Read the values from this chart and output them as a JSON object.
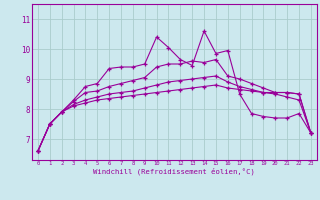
{
  "xlabel": "Windchill (Refroidissement éolien,°C)",
  "bg_color": "#cce8ee",
  "line_color": "#990099",
  "grid_color": "#aacccc",
  "x_ticks": [
    0,
    1,
    2,
    3,
    4,
    5,
    6,
    7,
    8,
    9,
    10,
    11,
    12,
    13,
    14,
    15,
    16,
    17,
    18,
    19,
    20,
    21,
    22,
    23
  ],
  "y_ticks": [
    7,
    8,
    9,
    10,
    11
  ],
  "xlim": [
    -0.5,
    23.5
  ],
  "ylim": [
    6.3,
    11.5
  ],
  "lines": [
    [
      6.6,
      7.5,
      7.9,
      8.1,
      8.2,
      8.3,
      8.35,
      8.4,
      8.45,
      8.5,
      8.55,
      8.6,
      8.65,
      8.7,
      8.75,
      8.8,
      8.7,
      8.65,
      8.6,
      8.55,
      8.5,
      8.4,
      8.3,
      7.2
    ],
    [
      6.6,
      7.5,
      7.9,
      8.15,
      8.3,
      8.4,
      8.5,
      8.55,
      8.6,
      8.7,
      8.8,
      8.9,
      8.95,
      9.0,
      9.05,
      9.1,
      8.9,
      8.75,
      8.65,
      8.55,
      8.55,
      8.55,
      8.5,
      7.2
    ],
    [
      6.6,
      7.5,
      7.9,
      8.25,
      8.55,
      8.6,
      8.75,
      8.85,
      8.95,
      9.05,
      9.4,
      9.5,
      9.5,
      9.6,
      9.55,
      9.65,
      9.1,
      9.0,
      8.85,
      8.7,
      8.55,
      8.55,
      8.5,
      7.2
    ],
    [
      6.6,
      7.5,
      7.9,
      8.3,
      8.75,
      8.85,
      9.35,
      9.4,
      9.4,
      9.5,
      10.4,
      10.05,
      9.65,
      9.45,
      10.6,
      9.85,
      9.95,
      8.5,
      7.85,
      7.75,
      7.7,
      7.7,
      7.85,
      7.2
    ]
  ]
}
